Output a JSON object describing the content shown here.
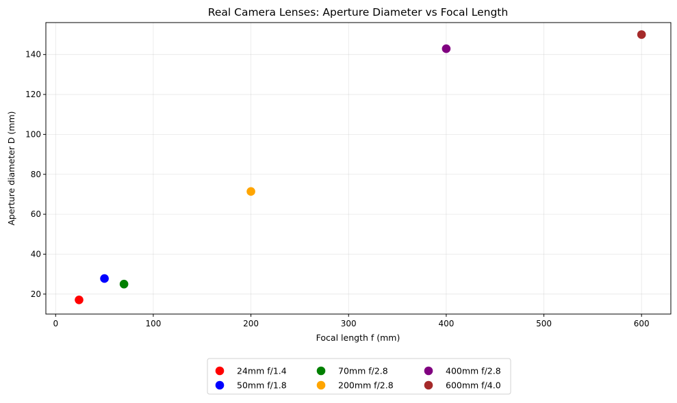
{
  "chart_data": {
    "type": "scatter",
    "title": "Real Camera Lenses: Aperture Diameter vs Focal Length",
    "xlabel": "Focal length f (mm)",
    "ylabel": "Aperture diameter D (mm)",
    "xlim": [
      -10,
      630
    ],
    "ylim": [
      10,
      156
    ],
    "xticks": [
      0,
      100,
      200,
      300,
      400,
      500,
      600
    ],
    "yticks": [
      20,
      40,
      60,
      80,
      100,
      120,
      140
    ],
    "grid": true,
    "legend_placement": "bottom-center, 3 columns",
    "series": [
      {
        "name": "24mm f/1.4",
        "color": "#ff0000",
        "x": 24,
        "y": 17.1
      },
      {
        "name": "50mm f/1.8",
        "color": "#0000ff",
        "x": 50,
        "y": 27.8
      },
      {
        "name": "70mm f/2.8",
        "color": "#008000",
        "x": 70,
        "y": 25.0
      },
      {
        "name": "200mm f/2.8",
        "color": "#ffa500",
        "x": 200,
        "y": 71.4
      },
      {
        "name": "400mm f/2.8",
        "color": "#800080",
        "x": 400,
        "y": 142.9
      },
      {
        "name": "600mm f/4.0",
        "color": "#a52a2a",
        "x": 600,
        "y": 150.0
      }
    ]
  }
}
